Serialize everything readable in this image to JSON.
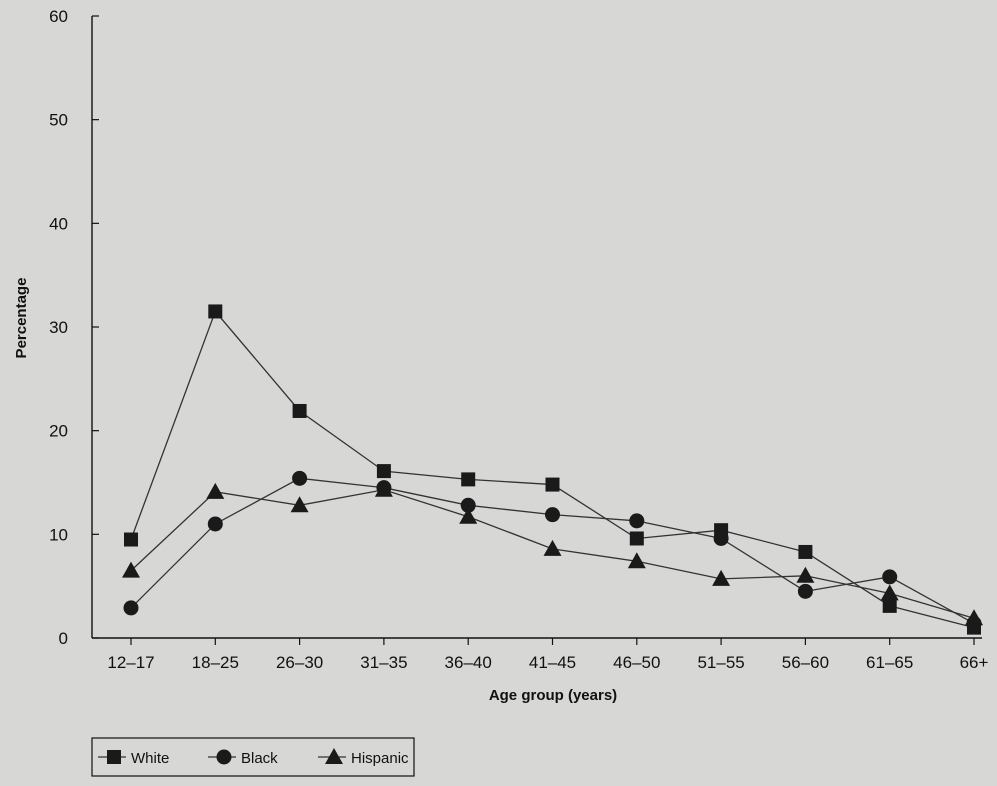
{
  "chart_data": {
    "type": "line",
    "title": "",
    "xlabel": "Age group (years)",
    "ylabel": "Percentage",
    "categories": [
      "12–17",
      "18–25",
      "26–30",
      "31–35",
      "36–40",
      "41–45",
      "46–50",
      "51–55",
      "56–60",
      "61–65",
      "66+"
    ],
    "ylim": [
      0,
      60
    ],
    "yticks": [
      "0",
      "10",
      "20",
      "30",
      "40",
      "50",
      "60"
    ],
    "grid": false,
    "legend_position": "bottom-left",
    "series": [
      {
        "name": "White",
        "marker": "square",
        "values": [
          9.5,
          31.5,
          21.9,
          16.1,
          15.3,
          14.8,
          9.6,
          10.4,
          8.3,
          3.1,
          1.0
        ]
      },
      {
        "name": "Black",
        "marker": "circle",
        "values": [
          2.9,
          11.0,
          15.4,
          14.5,
          12.8,
          11.9,
          11.3,
          9.6,
          4.5,
          5.9,
          1.4
        ]
      },
      {
        "name": "Hispanic",
        "marker": "triangle",
        "values": [
          6.5,
          14.1,
          12.8,
          14.3,
          11.7,
          8.6,
          7.4,
          5.7,
          6.0,
          4.3,
          1.9
        ]
      }
    ],
    "colors": {
      "line": "#333333",
      "marker": "#1a1a1a",
      "axis": "#111111",
      "background": "#d7d7d5"
    }
  }
}
